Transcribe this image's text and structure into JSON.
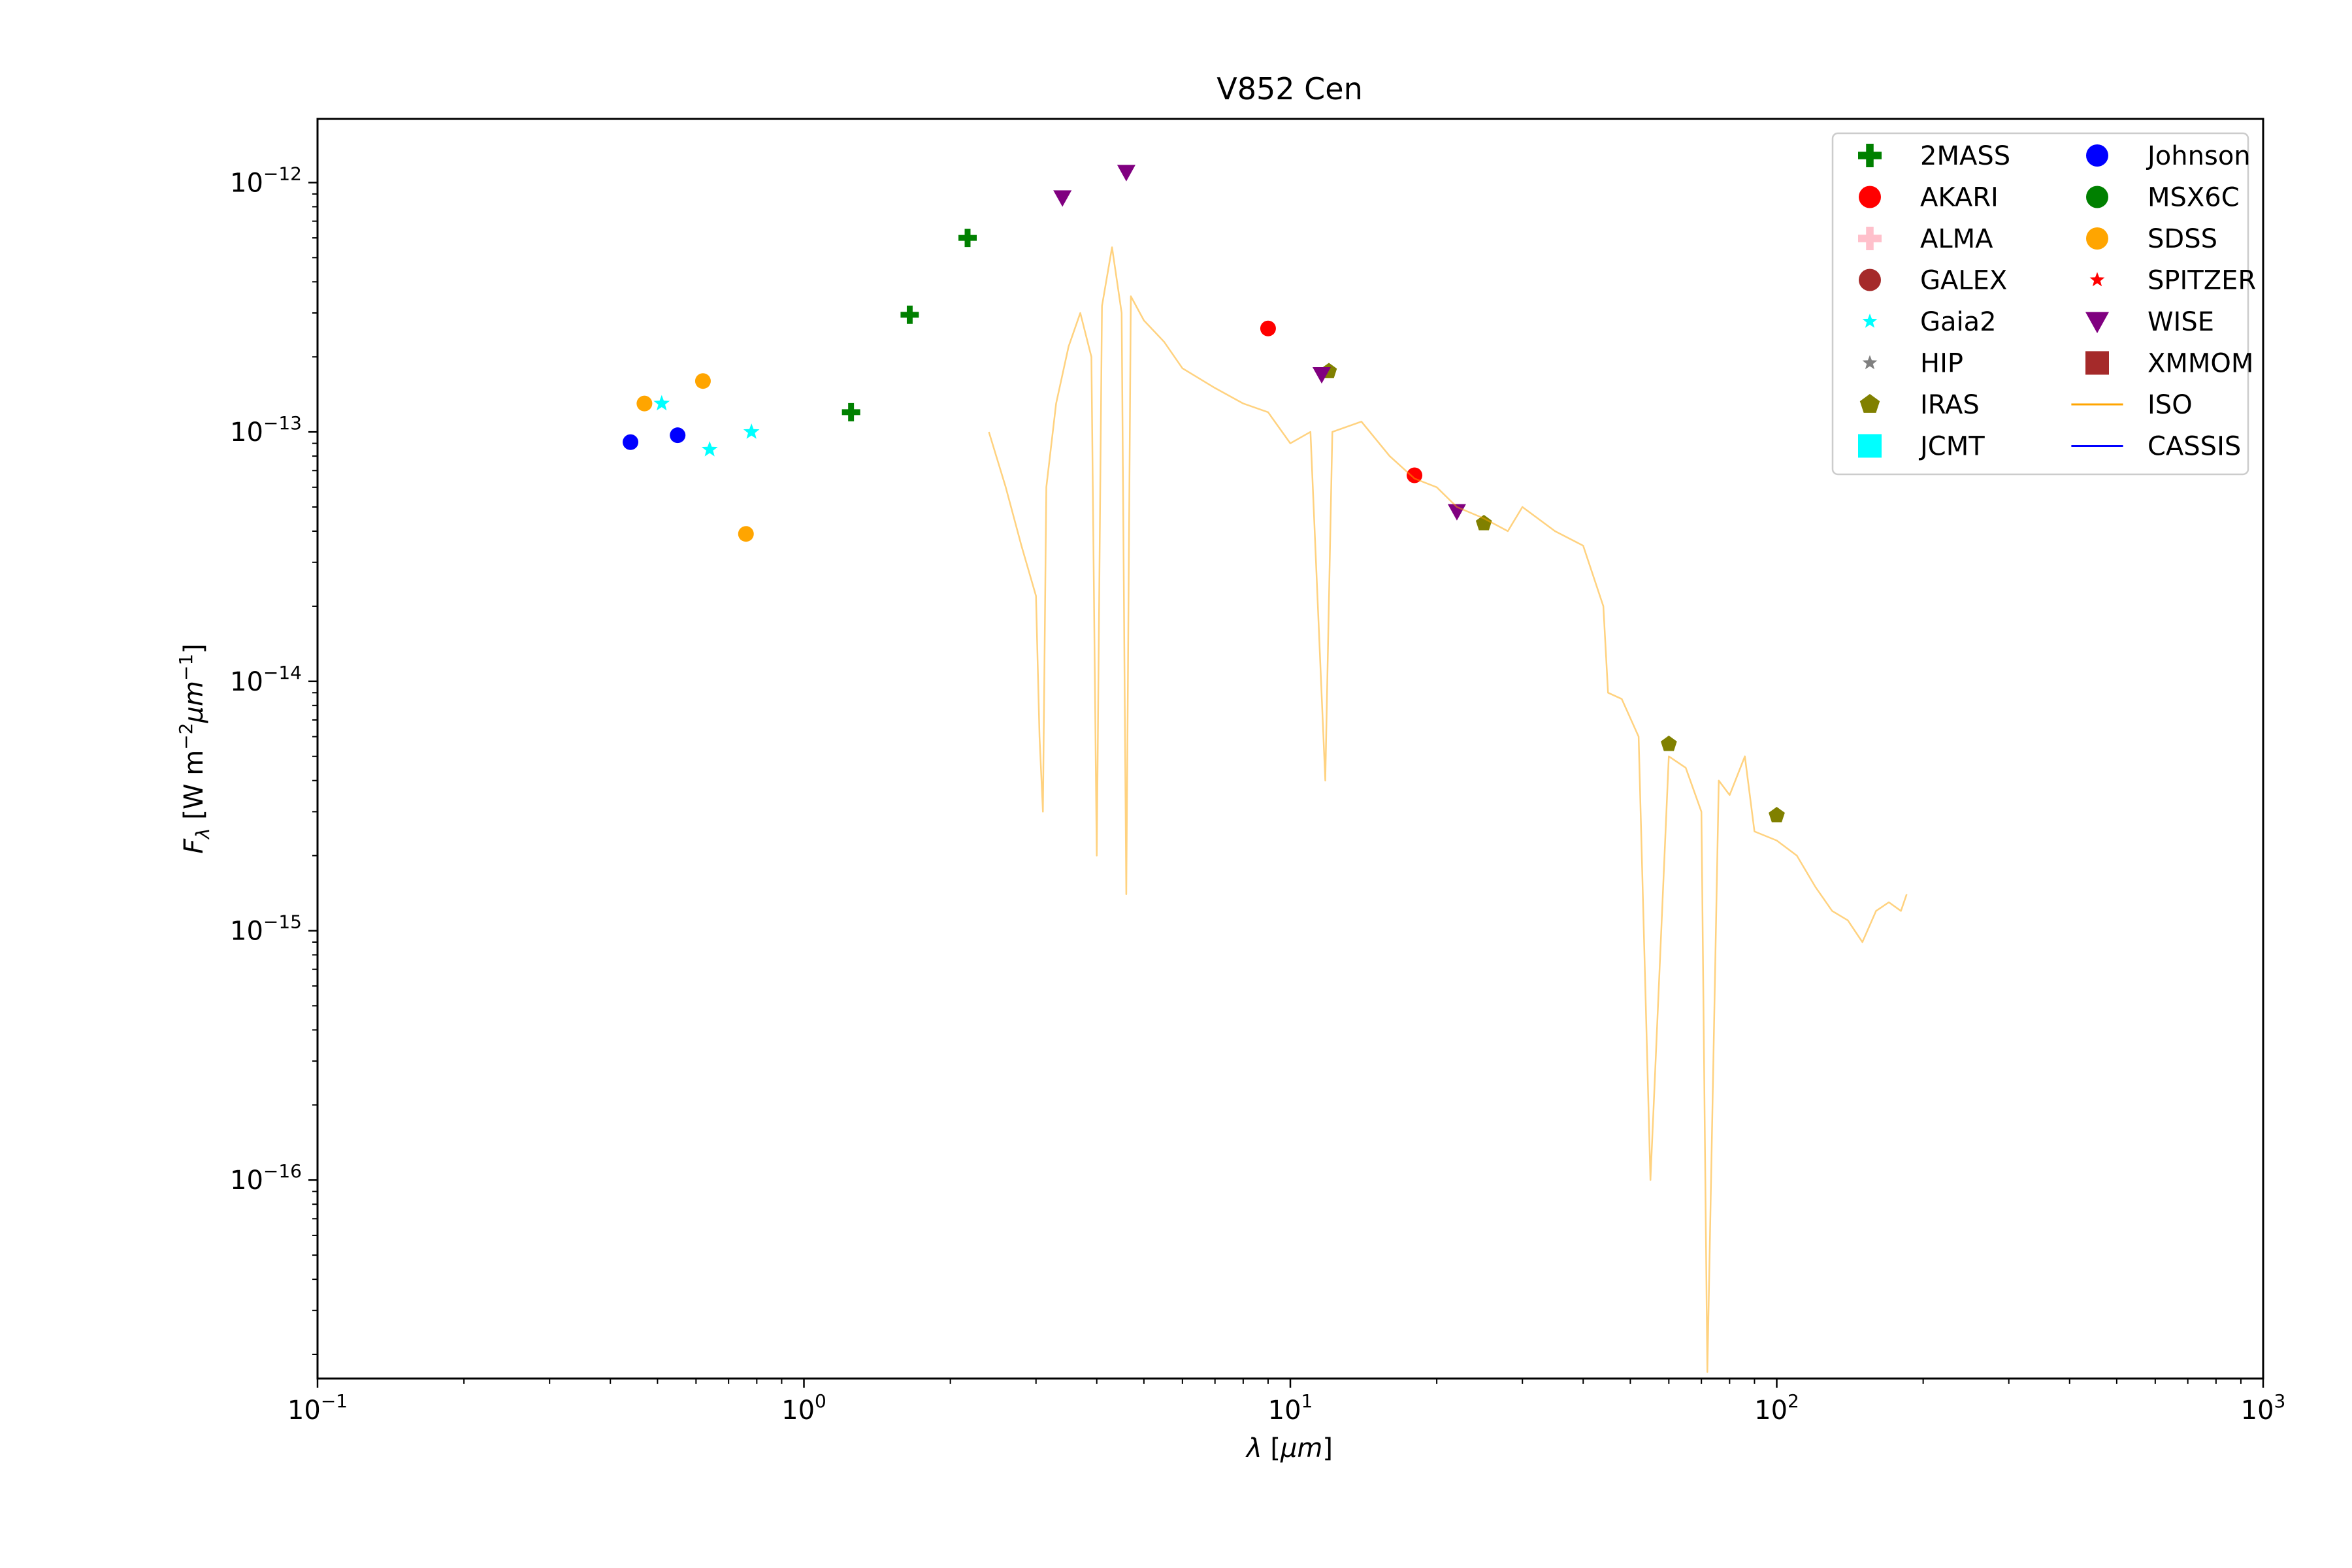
{
  "chart_data": {
    "type": "scatter",
    "title": "V852 Cen",
    "xlabel": "λ [μm]",
    "ylabel": "F_λ [W m^-2 μm^-1]",
    "x_scale": "log",
    "y_scale": "log",
    "xlim": [
      0.1,
      1000
    ],
    "ylim": [
      1.6e-17,
      1.8e-12
    ],
    "grid": false,
    "legend_position": "top-right",
    "x_ticks": [
      {
        "mant": "10",
        "exp": "−1",
        "value": 0.1
      },
      {
        "mant": "10",
        "exp": "0",
        "value": 1
      },
      {
        "mant": "10",
        "exp": "1",
        "value": 10
      },
      {
        "mant": "10",
        "exp": "2",
        "value": 100
      },
      {
        "mant": "10",
        "exp": "3",
        "value": 1000
      }
    ],
    "y_ticks": [
      {
        "mant": "10",
        "exp": "−12",
        "value": 1e-12
      },
      {
        "mant": "10",
        "exp": "−13",
        "value": 1e-13
      },
      {
        "mant": "10",
        "exp": "−14",
        "value": 1e-14
      },
      {
        "mant": "10",
        "exp": "−15",
        "value": 1e-15
      },
      {
        "mant": "10",
        "exp": "−16",
        "value": 1e-16
      }
    ],
    "series": [
      {
        "name": "2MASS",
        "marker": "plus",
        "color": "#008000",
        "points": [
          [
            1.25,
            1.2e-13
          ],
          [
            1.65,
            2.95e-13
          ],
          [
            2.17,
            6e-13
          ]
        ]
      },
      {
        "name": "AKARI",
        "marker": "circle",
        "color": "#ff0000",
        "points": [
          [
            9.0,
            2.6e-13
          ],
          [
            18.0,
            6.7e-14
          ]
        ]
      },
      {
        "name": "ALMA",
        "marker": "plus",
        "color": "#ffc0cb",
        "points": []
      },
      {
        "name": "GALEX",
        "marker": "circle",
        "color": "#a52a2a",
        "points": []
      },
      {
        "name": "Gaia2",
        "marker": "star",
        "color": "#00ffff",
        "points": [
          [
            0.51,
            1.3e-13
          ],
          [
            0.64,
            8.5e-14
          ],
          [
            0.78,
            1e-13
          ]
        ]
      },
      {
        "name": "HIP",
        "marker": "star",
        "color": "#808080",
        "points": []
      },
      {
        "name": "IRAS",
        "marker": "pentagon",
        "color": "#808000",
        "points": [
          [
            12.0,
            1.75e-13
          ],
          [
            25.0,
            4.3e-14
          ],
          [
            60.0,
            5.6e-15
          ],
          [
            100.0,
            2.9e-15
          ]
        ]
      },
      {
        "name": "JCMT",
        "marker": "square",
        "color": "#00ffff",
        "points": []
      },
      {
        "name": "Johnson",
        "marker": "circle",
        "color": "#0000ff",
        "points": [
          [
            0.44,
            9.1e-14
          ],
          [
            0.55,
            9.7e-14
          ]
        ]
      },
      {
        "name": "MSX6C",
        "marker": "circle",
        "color": "#008000",
        "points": []
      },
      {
        "name": "SDSS",
        "marker": "circle",
        "color": "#ffa500",
        "points": [
          [
            0.47,
            1.3e-13
          ],
          [
            0.62,
            1.6e-13
          ],
          [
            0.76,
            3.9e-14
          ]
        ]
      },
      {
        "name": "SPITZER",
        "marker": "star",
        "color": "#ff0000",
        "points": []
      },
      {
        "name": "WISE",
        "marker": "triangle-down",
        "color": "#800080",
        "points": [
          [
            3.4,
            8.7e-13
          ],
          [
            4.6,
            1.1e-12
          ],
          [
            11.6,
            1.7e-13
          ],
          [
            22.0,
            4.8e-14
          ]
        ]
      },
      {
        "name": "XMMOM",
        "marker": "square",
        "color": "#a52a2a",
        "points": []
      },
      {
        "name": "ISO",
        "marker": "line",
        "color": "#ffa500",
        "points": [
          [
            2.4,
            1e-13
          ],
          [
            2.6,
            6e-14
          ],
          [
            2.8,
            3.5e-14
          ],
          [
            3.0,
            2.2e-14
          ],
          [
            3.05,
            6e-15
          ],
          [
            3.1,
            3e-15
          ],
          [
            3.15,
            6e-14
          ],
          [
            3.3,
            1.3e-13
          ],
          [
            3.5,
            2.2e-13
          ],
          [
            3.7,
            3e-13
          ],
          [
            3.9,
            2e-13
          ],
          [
            4.0,
            2e-15
          ],
          [
            4.1,
            3.2e-13
          ],
          [
            4.3,
            5.5e-13
          ],
          [
            4.5,
            3e-13
          ],
          [
            4.6,
            1.4e-15
          ],
          [
            4.7,
            3.5e-13
          ],
          [
            5.0,
            2.8e-13
          ],
          [
            5.5,
            2.3e-13
          ],
          [
            6.0,
            1.8e-13
          ],
          [
            7.0,
            1.5e-13
          ],
          [
            8.0,
            1.3e-13
          ],
          [
            9.0,
            1.2e-13
          ],
          [
            10.0,
            9e-14
          ],
          [
            11.0,
            1e-13
          ],
          [
            11.8,
            4e-15
          ],
          [
            12.2,
            1e-13
          ],
          [
            14.0,
            1.1e-13
          ],
          [
            16.0,
            8e-14
          ],
          [
            18.0,
            6.5e-14
          ],
          [
            20.0,
            6e-14
          ],
          [
            22.0,
            5e-14
          ],
          [
            25.0,
            4.5e-14
          ],
          [
            28.0,
            4e-14
          ],
          [
            30.0,
            5e-14
          ],
          [
            35.0,
            4e-14
          ],
          [
            40.0,
            3.5e-14
          ],
          [
            44.0,
            2e-14
          ],
          [
            45.0,
            9e-15
          ],
          [
            48.0,
            8.5e-15
          ],
          [
            52.0,
            6e-15
          ],
          [
            55.0,
            1e-16
          ],
          [
            60.0,
            5e-15
          ],
          [
            65.0,
            4.5e-15
          ],
          [
            70.0,
            3e-15
          ],
          [
            72.0,
            1.7e-17
          ],
          [
            76.0,
            4e-15
          ],
          [
            80.0,
            3.5e-15
          ],
          [
            86.0,
            5e-15
          ],
          [
            90.0,
            2.5e-15
          ],
          [
            100.0,
            2.3e-15
          ],
          [
            110.0,
            2e-15
          ],
          [
            120.0,
            1.5e-15
          ],
          [
            130.0,
            1.2e-15
          ],
          [
            140.0,
            1.1e-15
          ],
          [
            150.0,
            9e-16
          ],
          [
            160.0,
            1.2e-15
          ],
          [
            170.0,
            1.3e-15
          ],
          [
            180.0,
            1.2e-15
          ],
          [
            185.0,
            1.4e-15
          ]
        ]
      },
      {
        "name": "CASSIS",
        "marker": "line",
        "color": "#0000ff",
        "points": []
      }
    ]
  }
}
